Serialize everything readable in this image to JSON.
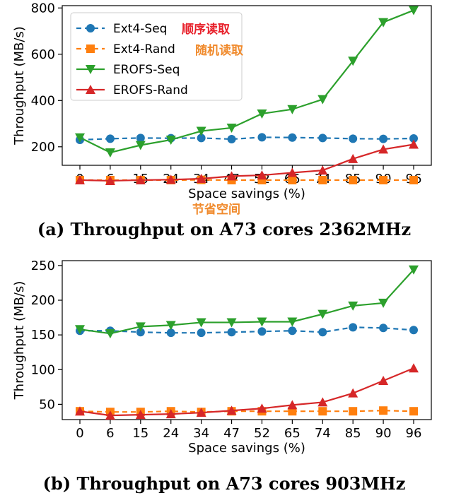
{
  "colors": {
    "seq_blue": "#1f77b4",
    "rand_orange": "#ff7f0e",
    "erofs_green": "#2ca02c",
    "erofs_red": "#d62728",
    "note_red": "#e8202a",
    "note_orange": "#f08a2c"
  },
  "annotations": {
    "seq_note": "顺序读取",
    "rand_note": "随机读取",
    "xlabel_note": "节省空间"
  },
  "chart_data": [
    {
      "type": "line",
      "caption": "(a) Throughput on A73 cores 2362MHz",
      "xlabel": "Space savings (%)",
      "ylabel": "Throughput (MB/s)",
      "categories": [
        "0",
        "6",
        "15",
        "24",
        "34",
        "47",
        "52",
        "65",
        "74",
        "85",
        "90",
        "96"
      ],
      "ylim": [
        120,
        810
      ],
      "yticks": [
        200,
        400,
        600,
        800
      ],
      "legend_position": "top-left",
      "series": [
        {
          "name": "Ext4-Seq",
          "color": "#1f77b4",
          "marker": "circle",
          "dashed": true,
          "values": [
            230,
            235,
            238,
            237,
            238,
            233,
            241,
            240,
            238,
            235,
            234,
            236
          ]
        },
        {
          "name": "Ext4-Rand",
          "color": "#ff7f0e",
          "marker": "square",
          "dashed": true,
          "values": [
            56,
            56,
            56,
            56,
            57,
            56,
            56,
            56,
            56,
            56,
            56,
            56
          ]
        },
        {
          "name": "EROFS-Seq",
          "color": "#2ca02c",
          "marker": "triangle-down",
          "dashed": false,
          "values": [
            240,
            175,
            207,
            230,
            268,
            282,
            343,
            362,
            405,
            571,
            738,
            790
          ]
        },
        {
          "name": "EROFS-Rand",
          "color": "#d62728",
          "marker": "triangle-up",
          "dashed": false,
          "values": [
            56,
            53,
            56,
            58,
            62,
            73,
            77,
            88,
            98,
            148,
            189,
            210
          ]
        }
      ]
    },
    {
      "type": "line",
      "caption": "(b) Throughput on A73 cores 903MHz",
      "xlabel": "Space savings (%)",
      "ylabel": "Throughput (MB/s)",
      "categories": [
        "0",
        "6",
        "15",
        "24",
        "34",
        "47",
        "52",
        "65",
        "74",
        "85",
        "90",
        "96"
      ],
      "ylim": [
        28,
        257
      ],
      "yticks": [
        50,
        100,
        150,
        200,
        250
      ],
      "legend_position": "none",
      "series": [
        {
          "name": "Ext4-Seq",
          "color": "#1f77b4",
          "marker": "circle",
          "dashed": true,
          "values": [
            156,
            156,
            154,
            153,
            153,
            154,
            155,
            156,
            154,
            161,
            160,
            157
          ]
        },
        {
          "name": "Ext4-Rand",
          "color": "#ff7f0e",
          "marker": "square",
          "dashed": true,
          "values": [
            40,
            39,
            39,
            40,
            39,
            40,
            40,
            40,
            40,
            40,
            41,
            40
          ]
        },
        {
          "name": "EROFS-Seq",
          "color": "#2ca02c",
          "marker": "triangle-down",
          "dashed": false,
          "values": [
            158,
            152,
            162,
            164,
            168,
            168,
            169,
            169,
            180,
            192,
            196,
            244
          ]
        },
        {
          "name": "EROFS-Rand",
          "color": "#d62728",
          "marker": "triangle-up",
          "dashed": false,
          "values": [
            40,
            34,
            35,
            36,
            38,
            41,
            44,
            49,
            53,
            66,
            84,
            102
          ]
        }
      ]
    }
  ]
}
